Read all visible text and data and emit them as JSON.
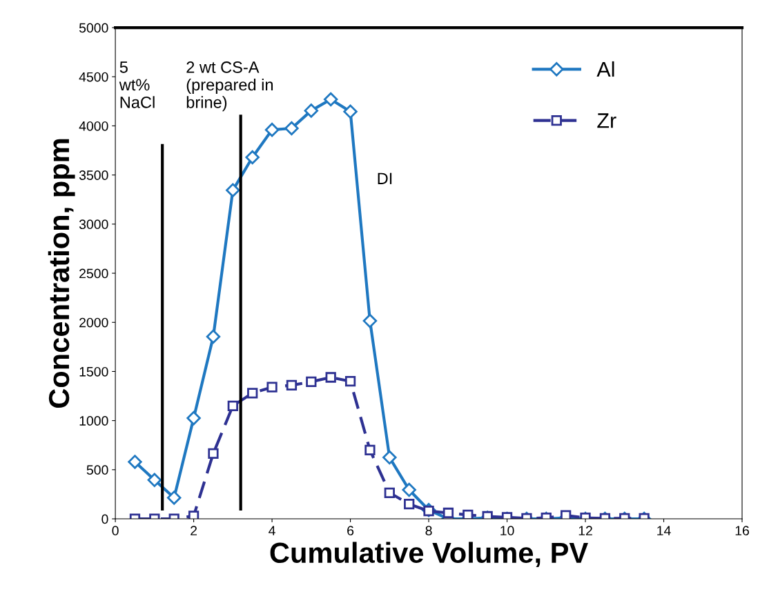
{
  "chart_data": {
    "type": "line",
    "xlabel": "Cumulative Volume, PV",
    "ylabel": "Concentration, ppm",
    "x": [
      0.5,
      1,
      1.5,
      2,
      2.5,
      3,
      3.5,
      4,
      4.5,
      5,
      5.5,
      6,
      6.5,
      7,
      7.5,
      8,
      8.5,
      9,
      9.5,
      10,
      10.5,
      11,
      11.5,
      12,
      12.5,
      13,
      13.5
    ],
    "series": [
      {
        "name": "Al",
        "color": "#1f78c1",
        "marker": "diamond",
        "line_style": "solid",
        "values": [
          580,
          395,
          215,
          1025,
          1855,
          3345,
          3680,
          3960,
          3975,
          4155,
          4270,
          4145,
          2015,
          625,
          295,
          90,
          0,
          0,
          10,
          0,
          0,
          0,
          10,
          0,
          0,
          0,
          0
        ]
      },
      {
        "name": "Zr",
        "color": "#2e3192",
        "marker": "square",
        "line_style": "dashed",
        "values": [
          0,
          0,
          0,
          30,
          665,
          1150,
          1280,
          1340,
          1360,
          1395,
          1440,
          1400,
          700,
          265,
          150,
          80,
          60,
          40,
          25,
          15,
          5,
          10,
          35,
          10,
          5,
          5,
          5
        ]
      }
    ],
    "ref_lines": [
      {
        "axis": "x",
        "value": 1.2,
        "label": "5\nwt%\nNaCl",
        "color": "#000000"
      },
      {
        "axis": "x",
        "value": 3.2,
        "label": "2 wt CS-A\n(prepared in\nbrine)",
        "color": "#000000"
      }
    ],
    "annotations": [
      "DI"
    ],
    "xlim": [
      0,
      16
    ],
    "xticks": [
      0,
      2,
      4,
      6,
      8,
      10,
      12,
      14,
      16
    ],
    "ylim": [
      0,
      5000
    ],
    "yticks": [
      0,
      500,
      1000,
      1500,
      2000,
      2500,
      3000,
      3500,
      4000,
      4500,
      5000
    ],
    "grid": false,
    "legend": "top right"
  }
}
